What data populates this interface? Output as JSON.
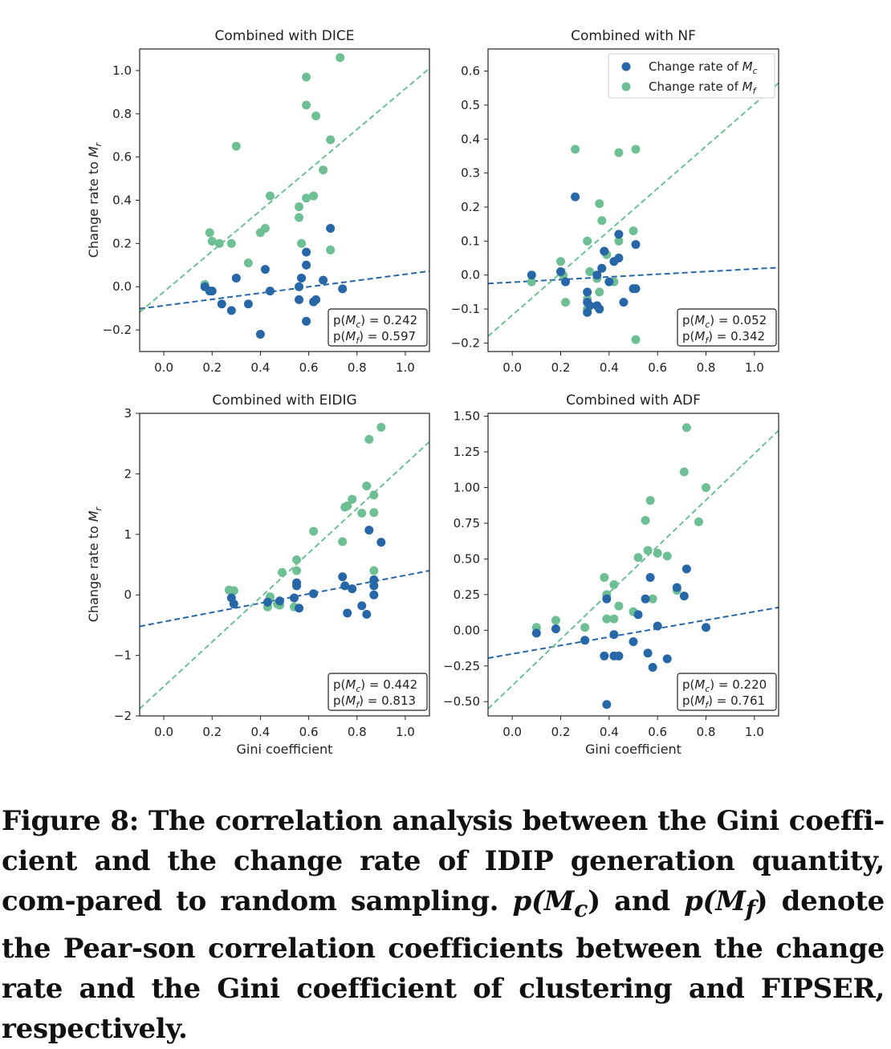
{
  "figure": {
    "y_label_main": "Change rate to ",
    "y_label_sub": "r",
    "y_label_var": "M",
    "colors": {
      "clustering": "#2766a7",
      "fipser": "#6fbf94"
    },
    "legend": {
      "clustering": "Change rate of M_c",
      "fipser": "Change rate of M_f",
      "placement": "upper-right"
    }
  },
  "chart_data": [
    {
      "type": "scatter",
      "title": "Combined with DICE",
      "xlabel": "",
      "ylabel": "Change rate to M_r",
      "xlim": [
        -0.1,
        1.1
      ],
      "ylim": [
        -0.3,
        1.1
      ],
      "xticks": [
        0.0,
        0.2,
        0.4,
        0.6,
        0.8,
        1.0
      ],
      "yticks": [
        -0.2,
        0.0,
        0.2,
        0.4,
        0.6,
        0.8,
        1.0
      ],
      "ytick_labels": [
        "−0.2",
        "0.0",
        "0.2",
        "0.4",
        "0.6",
        "0.8",
        "1.0"
      ],
      "legend": false,
      "annotation": [
        "p(M_c) = 0.242",
        "p(M_f) = 0.597"
      ],
      "series": [
        {
          "name": "Change rate of M_c",
          "color": "#2766a7",
          "points": [
            [
              0.17,
              0.0
            ],
            [
              0.19,
              -0.02
            ],
            [
              0.2,
              -0.02
            ],
            [
              0.24,
              -0.08
            ],
            [
              0.28,
              -0.11
            ],
            [
              0.3,
              0.04
            ],
            [
              0.35,
              -0.08
            ],
            [
              0.4,
              -0.22
            ],
            [
              0.42,
              0.08
            ],
            [
              0.44,
              -0.02
            ],
            [
              0.56,
              0.0
            ],
            [
              0.56,
              -0.06
            ],
            [
              0.57,
              0.04
            ],
            [
              0.59,
              -0.16
            ],
            [
              0.59,
              0.1
            ],
            [
              0.59,
              0.16
            ],
            [
              0.62,
              -0.07
            ],
            [
              0.63,
              -0.06
            ],
            [
              0.66,
              0.03
            ],
            [
              0.69,
              0.27
            ],
            [
              0.74,
              -0.01
            ]
          ],
          "trend": [
            [
              -0.1,
              -0.102
            ],
            [
              1.1,
              0.072
            ]
          ]
        },
        {
          "name": "Change rate of M_f",
          "color": "#6fbf94",
          "points": [
            [
              0.17,
              0.01
            ],
            [
              0.19,
              0.25
            ],
            [
              0.2,
              0.21
            ],
            [
              0.23,
              0.2
            ],
            [
              0.28,
              0.2
            ],
            [
              0.3,
              0.65
            ],
            [
              0.35,
              0.11
            ],
            [
              0.4,
              0.25
            ],
            [
              0.42,
              0.27
            ],
            [
              0.44,
              0.42
            ],
            [
              0.56,
              0.37
            ],
            [
              0.56,
              0.32
            ],
            [
              0.57,
              0.2
            ],
            [
              0.59,
              0.41
            ],
            [
              0.59,
              0.97
            ],
            [
              0.59,
              0.84
            ],
            [
              0.62,
              0.42
            ],
            [
              0.63,
              0.79
            ],
            [
              0.66,
              0.54
            ],
            [
              0.69,
              0.68
            ],
            [
              0.69,
              0.17
            ],
            [
              0.73,
              1.06
            ]
          ],
          "trend": [
            [
              -0.1,
              -0.118
            ],
            [
              1.1,
              1.01
            ]
          ]
        }
      ]
    },
    {
      "type": "scatter",
      "title": "Combined with NF",
      "xlabel": "",
      "ylabel": "",
      "xlim": [
        -0.1,
        1.1
      ],
      "ylim": [
        -0.225,
        0.665
      ],
      "xticks": [
        0.0,
        0.2,
        0.4,
        0.6,
        0.8,
        1.0
      ],
      "yticks": [
        -0.2,
        -0.1,
        0.0,
        0.1,
        0.2,
        0.3,
        0.4,
        0.5,
        0.6
      ],
      "ytick_labels": [
        "−0.2",
        "−0.1",
        "0.0",
        "0.1",
        "0.2",
        "0.3",
        "0.4",
        "0.5",
        "0.6"
      ],
      "legend": true,
      "annotation": [
        "p(M_c) = 0.052",
        "p(M_f) = 0.342"
      ],
      "series": [
        {
          "name": "Change rate of M_c",
          "color": "#2766a7",
          "points": [
            [
              0.08,
              0.0
            ],
            [
              0.2,
              0.01
            ],
            [
              0.22,
              -0.02
            ],
            [
              0.26,
              0.23
            ],
            [
              0.31,
              -0.05
            ],
            [
              0.31,
              -0.08
            ],
            [
              0.31,
              -0.11
            ],
            [
              0.32,
              -0.09
            ],
            [
              0.35,
              -0.09
            ],
            [
              0.35,
              0.0
            ],
            [
              0.36,
              -0.1
            ],
            [
              0.37,
              0.02
            ],
            [
              0.38,
              0.07
            ],
            [
              0.4,
              -0.02
            ],
            [
              0.42,
              0.04
            ],
            [
              0.44,
              0.12
            ],
            [
              0.44,
              0.05
            ],
            [
              0.46,
              -0.08
            ],
            [
              0.5,
              -0.04
            ],
            [
              0.51,
              -0.04
            ],
            [
              0.51,
              0.09
            ]
          ],
          "trend": [
            [
              -0.1,
              -0.025
            ],
            [
              1.1,
              0.022
            ]
          ]
        },
        {
          "name": "Change rate of M_f",
          "color": "#6fbf94",
          "points": [
            [
              0.08,
              -0.02
            ],
            [
              0.2,
              0.04
            ],
            [
              0.21,
              0.0
            ],
            [
              0.22,
              -0.08
            ],
            [
              0.26,
              0.37
            ],
            [
              0.31,
              0.1
            ],
            [
              0.31,
              -0.07
            ],
            [
              0.31,
              -0.1
            ],
            [
              0.32,
              0.01
            ],
            [
              0.35,
              -0.01
            ],
            [
              0.36,
              -0.05
            ],
            [
              0.36,
              0.21
            ],
            [
              0.37,
              0.16
            ],
            [
              0.38,
              0.07
            ],
            [
              0.39,
              0.06
            ],
            [
              0.42,
              -0.02
            ],
            [
              0.44,
              0.36
            ],
            [
              0.44,
              0.1
            ],
            [
              0.5,
              0.13
            ],
            [
              0.51,
              0.37
            ],
            [
              0.51,
              -0.19
            ]
          ],
          "trend": [
            [
              -0.1,
              -0.18
            ],
            [
              1.1,
              0.565
            ]
          ]
        }
      ]
    },
    {
      "type": "scatter",
      "title": "Combined with EIDIG",
      "xlabel": "Gini coefficient",
      "ylabel": "Change rate to M_r",
      "xlim": [
        -0.1,
        1.1
      ],
      "ylim": [
        -2.0,
        3.0
      ],
      "xticks": [
        0.0,
        0.2,
        0.4,
        0.6,
        0.8,
        1.0
      ],
      "yticks": [
        -2,
        -1,
        0,
        1,
        2,
        3
      ],
      "ytick_labels": [
        "−2",
        "−1",
        "0",
        "1",
        "2",
        "3"
      ],
      "legend": false,
      "annotation": [
        "p(M_c) = 0.442",
        "p(M_f) = 0.813"
      ],
      "series": [
        {
          "name": "Change rate of M_c",
          "color": "#2766a7",
          "points": [
            [
              0.28,
              -0.05
            ],
            [
              0.29,
              -0.15
            ],
            [
              0.43,
              -0.12
            ],
            [
              0.48,
              -0.1
            ],
            [
              0.54,
              -0.05
            ],
            [
              0.55,
              0.2
            ],
            [
              0.55,
              0.15
            ],
            [
              0.56,
              -0.22
            ],
            [
              0.62,
              0.02
            ],
            [
              0.74,
              0.3
            ],
            [
              0.75,
              0.15
            ],
            [
              0.76,
              -0.3
            ],
            [
              0.78,
              0.1
            ],
            [
              0.82,
              -0.18
            ],
            [
              0.84,
              -0.32
            ],
            [
              0.85,
              1.07
            ],
            [
              0.87,
              0.25
            ],
            [
              0.87,
              0.15
            ],
            [
              0.87,
              0.0
            ],
            [
              0.9,
              0.87
            ]
          ],
          "trend": [
            [
              -0.1,
              -0.52
            ],
            [
              1.1,
              0.4
            ]
          ]
        },
        {
          "name": "Change rate of M_f",
          "color": "#6fbf94",
          "points": [
            [
              0.27,
              0.08
            ],
            [
              0.29,
              0.07
            ],
            [
              0.43,
              -0.2
            ],
            [
              0.44,
              -0.03
            ],
            [
              0.47,
              -0.15
            ],
            [
              0.48,
              -0.17
            ],
            [
              0.49,
              0.37
            ],
            [
              0.54,
              -0.2
            ],
            [
              0.55,
              0.58
            ],
            [
              0.55,
              0.4
            ],
            [
              0.62,
              1.05
            ],
            [
              0.74,
              0.88
            ],
            [
              0.75,
              1.45
            ],
            [
              0.76,
              1.47
            ],
            [
              0.78,
              1.58
            ],
            [
              0.82,
              1.35
            ],
            [
              0.84,
              1.8
            ],
            [
              0.85,
              2.57
            ],
            [
              0.87,
              1.65
            ],
            [
              0.87,
              1.36
            ],
            [
              0.87,
              0.4
            ],
            [
              0.9,
              2.77
            ]
          ],
          "trend": [
            [
              -0.1,
              -1.88
            ],
            [
              1.1,
              2.53
            ]
          ]
        }
      ]
    },
    {
      "type": "scatter",
      "title": "Combined with ADF",
      "xlabel": "Gini coefficient",
      "ylabel": "",
      "xlim": [
        -0.1,
        1.1
      ],
      "ylim": [
        -0.6,
        1.52
      ],
      "xticks": [
        0.0,
        0.2,
        0.4,
        0.6,
        0.8,
        1.0
      ],
      "yticks": [
        -0.5,
        -0.25,
        0.0,
        0.25,
        0.5,
        0.75,
        1.0,
        1.25,
        1.5
      ],
      "ytick_labels": [
        "−0.50",
        "−0.25",
        "0.00",
        "0.25",
        "0.50",
        "0.75",
        "1.00",
        "1.25",
        "1.50"
      ],
      "legend": false,
      "annotation": [
        "p(M_c) = 0.220",
        "p(M_f) = 0.761"
      ],
      "series": [
        {
          "name": "Change rate of M_c",
          "color": "#2766a7",
          "points": [
            [
              0.1,
              -0.02
            ],
            [
              0.18,
              0.01
            ],
            [
              0.3,
              -0.07
            ],
            [
              0.38,
              -0.18
            ],
            [
              0.39,
              -0.52
            ],
            [
              0.39,
              0.22
            ],
            [
              0.42,
              -0.03
            ],
            [
              0.42,
              -0.18
            ],
            [
              0.44,
              -0.18
            ],
            [
              0.5,
              -0.08
            ],
            [
              0.52,
              0.11
            ],
            [
              0.55,
              0.22
            ],
            [
              0.56,
              -0.16
            ],
            [
              0.57,
              0.37
            ],
            [
              0.58,
              -0.26
            ],
            [
              0.6,
              0.03
            ],
            [
              0.64,
              -0.2
            ],
            [
              0.68,
              0.3
            ],
            [
              0.71,
              0.24
            ],
            [
              0.72,
              0.43
            ],
            [
              0.8,
              0.02
            ]
          ],
          "trend": [
            [
              -0.1,
              -0.195
            ],
            [
              1.1,
              0.16
            ]
          ]
        },
        {
          "name": "Change rate of M_f",
          "color": "#6fbf94",
          "points": [
            [
              0.1,
              0.02
            ],
            [
              0.18,
              0.07
            ],
            [
              0.3,
              0.02
            ],
            [
              0.38,
              0.37
            ],
            [
              0.39,
              0.25
            ],
            [
              0.39,
              0.08
            ],
            [
              0.42,
              0.08
            ],
            [
              0.42,
              0.32
            ],
            [
              0.44,
              0.17
            ],
            [
              0.5,
              0.13
            ],
            [
              0.52,
              0.51
            ],
            [
              0.55,
              0.77
            ],
            [
              0.56,
              0.56
            ],
            [
              0.57,
              0.91
            ],
            [
              0.58,
              0.22
            ],
            [
              0.6,
              0.54
            ],
            [
              0.64,
              0.52
            ],
            [
              0.68,
              0.28
            ],
            [
              0.71,
              1.11
            ],
            [
              0.72,
              1.42
            ],
            [
              0.77,
              0.76
            ],
            [
              0.8,
              1.0
            ]
          ],
          "trend": [
            [
              -0.1,
              -0.55
            ],
            [
              1.1,
              1.4
            ]
          ]
        }
      ]
    }
  ],
  "caption": {
    "lead": "Figure 8: The correlation analysis between the Gini coeffi-cient and the change rate of IDIP generation quantity, com-pared to random sampling. ",
    "pc": "p(M",
    "pc_sub": "c",
    "and": ") and ",
    "pf": "p(M",
    "pf_sub": "f",
    "tail": ") denote the Pear-son correlation coefficients between the change rate and the Gini coefficient of clustering and FIPSER, respectively."
  }
}
